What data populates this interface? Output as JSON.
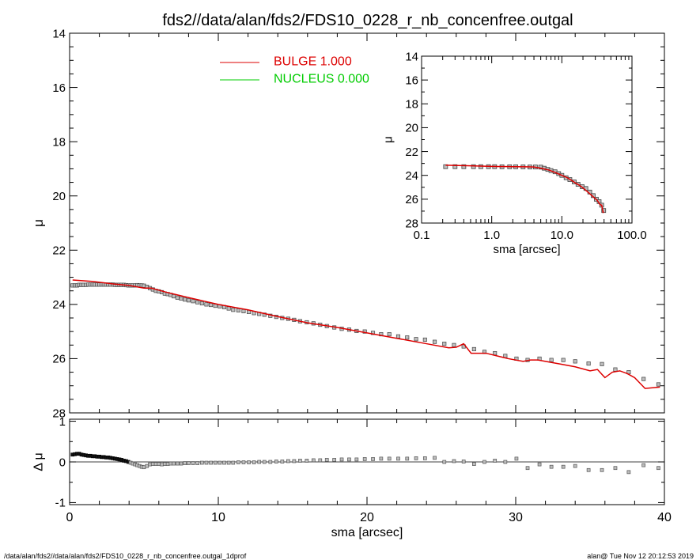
{
  "title": "fds2//data/alan/fds2/FDS10_0228_r_nb_concenfree.outgal",
  "footer_left": "/data/alan/fds2//data/alan/fds2/FDS10_0228_r_nb_concenfree.outgal_1dprof",
  "footer_right": "alan@  Tue Nov 12 20:12:53 2019",
  "colors": {
    "bulge": "#dd0000",
    "nucleus": "#00cc00",
    "data": "#555555"
  },
  "chart_data": [
    {
      "id": "main",
      "type": "scatter",
      "ylabel": "μ",
      "xlim": [
        0,
        40
      ],
      "ylim": [
        28,
        14
      ],
      "yticks": [
        14,
        16,
        18,
        20,
        22,
        24,
        26,
        28
      ],
      "legend": [
        {
          "label": "BULGE  1.000",
          "color": "#dd0000"
        },
        {
          "label": "NUCLEUS  0.000",
          "color": "#00cc00"
        }
      ],
      "legend_position": "top-left",
      "series": [
        {
          "kind": "points",
          "x": [
            0.2,
            0.35,
            0.5,
            0.65,
            0.8,
            0.95,
            1.1,
            1.25,
            1.4,
            1.55,
            1.7,
            1.85,
            2.0,
            2.15,
            2.3,
            2.45,
            2.6,
            2.75,
            2.9,
            3.05,
            3.2,
            3.35,
            3.5,
            3.65,
            3.8,
            3.95,
            4.1,
            4.25,
            4.4,
            4.55,
            4.7,
            4.85,
            5.0,
            5.2,
            5.4,
            5.6,
            5.8,
            6.0,
            6.2,
            6.4,
            6.6,
            6.8,
            7.0,
            7.25,
            7.5,
            7.75,
            8.0,
            8.3,
            8.6,
            8.9,
            9.2,
            9.5,
            9.8,
            10.1,
            10.4,
            10.7,
            11.0,
            11.35,
            11.7,
            12.05,
            12.4,
            12.75,
            13.1,
            13.5,
            13.9,
            14.3,
            14.7,
            15.1,
            15.5,
            15.95,
            16.4,
            16.85,
            17.3,
            17.8,
            18.3,
            18.8,
            19.3,
            19.85,
            20.4,
            20.95,
            21.5,
            22.1,
            22.7,
            23.3,
            23.9,
            24.55,
            25.2,
            25.85,
            26.5,
            27.2,
            27.9,
            28.6,
            29.3,
            30.05,
            30.8,
            31.6,
            32.4,
            33.2,
            34.0,
            34.9,
            35.8,
            36.7,
            37.6,
            38.6,
            39.6
          ],
          "y": [
            23.3,
            23.3,
            23.3,
            23.28,
            23.28,
            23.28,
            23.28,
            23.27,
            23.27,
            23.27,
            23.27,
            23.27,
            23.27,
            23.27,
            23.27,
            23.27,
            23.27,
            23.27,
            23.27,
            23.28,
            23.28,
            23.28,
            23.28,
            23.28,
            23.29,
            23.3,
            23.3,
            23.3,
            23.3,
            23.29,
            23.3,
            23.3,
            23.31,
            23.35,
            23.4,
            23.45,
            23.5,
            23.52,
            23.55,
            23.6,
            23.62,
            23.65,
            23.7,
            23.75,
            23.78,
            23.82,
            23.85,
            23.88,
            23.92,
            23.96,
            24.0,
            24.02,
            24.05,
            24.07,
            24.1,
            24.15,
            24.2,
            24.22,
            24.25,
            24.28,
            24.32,
            24.35,
            24.38,
            24.42,
            24.46,
            24.5,
            24.53,
            24.57,
            24.62,
            24.66,
            24.7,
            24.75,
            24.8,
            24.85,
            24.9,
            24.93,
            24.98,
            25.0,
            25.05,
            25.1,
            25.1,
            25.18,
            25.22,
            25.28,
            25.3,
            25.38,
            25.45,
            25.5,
            25.55,
            25.65,
            25.75,
            25.8,
            25.9,
            26.0,
            26.05,
            26.0,
            26.05,
            26.05,
            26.1,
            26.18,
            26.2,
            26.4,
            26.5,
            26.75,
            26.95
          ]
        },
        {
          "kind": "line",
          "name": "BULGE",
          "color": "#dd0000",
          "x": [
            0.2,
            1.5,
            3.0,
            4.0,
            5.0,
            5.5,
            6.5,
            8.0,
            10.0,
            12.0,
            14.0,
            16.0,
            18.0,
            20.0,
            22.0,
            24.0,
            25.5,
            26.0,
            26.5,
            27.0,
            28.0,
            29.5,
            30.5,
            31.0,
            31.5,
            32.0,
            33.0,
            34.0,
            35.0,
            35.5,
            36.0,
            36.5,
            37.0,
            37.5,
            38.0,
            38.7,
            39.7
          ],
          "y": [
            23.1,
            23.15,
            23.25,
            23.3,
            23.4,
            23.4,
            23.55,
            23.75,
            24.0,
            24.2,
            24.45,
            24.68,
            24.85,
            25.05,
            25.25,
            25.45,
            25.6,
            25.58,
            25.45,
            25.8,
            25.8,
            26.0,
            26.1,
            26.05,
            26.05,
            26.1,
            26.2,
            26.3,
            26.45,
            26.4,
            26.7,
            26.5,
            26.45,
            26.55,
            26.7,
            27.1,
            27.05
          ]
        }
      ]
    },
    {
      "id": "inset",
      "type": "scatter",
      "xlabel": "sma [arcsec]",
      "ylabel": "μ",
      "xscale": "log",
      "xlim": [
        0.1,
        100
      ],
      "ylim": [
        28,
        14
      ],
      "xtick_labels": [
        "0.1",
        "1.0",
        "10.0",
        "100.0"
      ],
      "yticks": [
        14,
        16,
        18,
        20,
        22,
        24,
        26,
        28
      ],
      "series": [
        {
          "kind": "points",
          "x": [
            0.22,
            0.3,
            0.4,
            0.55,
            0.7,
            0.9,
            1.1,
            1.4,
            1.8,
            2.2,
            2.8,
            3.5,
            4.2,
            5.0,
            5.6,
            6.3,
            7.0,
            8.0,
            9.0,
            10.0,
            11.5,
            13.0,
            15.0,
            17.0,
            19.5,
            22.0,
            25.0,
            28.0,
            31.0,
            34.0,
            37.0,
            39.5
          ],
          "y": [
            23.27,
            23.27,
            23.27,
            23.27,
            23.27,
            23.27,
            23.27,
            23.28,
            23.28,
            23.28,
            23.29,
            23.3,
            23.3,
            23.31,
            23.4,
            23.5,
            23.6,
            23.7,
            23.85,
            24.0,
            24.2,
            24.35,
            24.55,
            24.75,
            24.95,
            25.1,
            25.4,
            25.7,
            26.0,
            26.2,
            26.5,
            26.95
          ]
        },
        {
          "kind": "line",
          "name": "BULGE",
          "color": "#dd0000",
          "x": [
            0.22,
            0.5,
            1.0,
            2.0,
            3.0,
            4.0,
            5.0,
            6.5,
            8.0,
            10.0,
            12.0,
            14.0,
            16.0,
            18.0,
            20.0,
            24.0,
            28.0,
            32.0,
            35.0,
            37.0,
            38.7,
            39.7
          ],
          "y": [
            23.15,
            23.2,
            23.25,
            23.27,
            23.28,
            23.3,
            23.4,
            23.55,
            23.75,
            24.0,
            24.2,
            24.45,
            24.68,
            24.85,
            25.05,
            25.45,
            25.8,
            26.1,
            26.45,
            26.5,
            27.1,
            27.05
          ]
        }
      ]
    },
    {
      "id": "residual",
      "type": "scatter",
      "xlabel": "sma [arcsec]",
      "ylabel": "Δ μ",
      "xlim": [
        0,
        40
      ],
      "ylim": [
        -1.05,
        1.05
      ],
      "xticks": [
        0,
        10,
        20,
        30,
        40
      ],
      "yticks": [
        1,
        0,
        -1
      ],
      "series": [
        {
          "kind": "points",
          "x": [
            0.2,
            0.35,
            0.5,
            0.65,
            0.8,
            0.95,
            1.1,
            1.25,
            1.4,
            1.55,
            1.7,
            1.85,
            2.0,
            2.15,
            2.3,
            2.45,
            2.6,
            2.75,
            2.9,
            3.05,
            3.2,
            3.35,
            3.5,
            3.65,
            3.8,
            3.95,
            4.1,
            4.25,
            4.4,
            4.55,
            4.7,
            4.85,
            5.0,
            5.2,
            5.4,
            5.6,
            5.8,
            6.0,
            6.2,
            6.4,
            6.6,
            6.8,
            7.0,
            7.25,
            7.5,
            7.75,
            8.0,
            8.3,
            8.6,
            8.9,
            9.2,
            9.5,
            9.8,
            10.1,
            10.4,
            10.7,
            11.0,
            11.35,
            11.7,
            12.05,
            12.4,
            12.75,
            13.1,
            13.5,
            13.9,
            14.3,
            14.7,
            15.1,
            15.5,
            15.95,
            16.4,
            16.85,
            17.3,
            17.8,
            18.3,
            18.8,
            19.3,
            19.85,
            20.4,
            20.95,
            21.5,
            22.1,
            22.7,
            23.3,
            23.9,
            24.55,
            25.2,
            25.85,
            26.5,
            27.2,
            27.9,
            28.6,
            29.3,
            30.05,
            30.8,
            31.6,
            32.4,
            33.2,
            34.0,
            34.9,
            35.8,
            36.7,
            37.6,
            38.6,
            39.6
          ],
          "y": [
            0.18,
            0.19,
            0.2,
            0.2,
            0.18,
            0.17,
            0.16,
            0.15,
            0.15,
            0.14,
            0.14,
            0.13,
            0.13,
            0.12,
            0.12,
            0.11,
            0.11,
            0.1,
            0.09,
            0.08,
            0.07,
            0.06,
            0.05,
            0.03,
            0.02,
            0.0,
            -0.02,
            -0.04,
            -0.06,
            -0.08,
            -0.1,
            -0.12,
            -0.13,
            -0.1,
            -0.06,
            -0.05,
            -0.05,
            -0.05,
            -0.06,
            -0.05,
            -0.05,
            -0.04,
            -0.04,
            -0.04,
            -0.04,
            -0.03,
            -0.03,
            -0.03,
            -0.03,
            -0.02,
            -0.02,
            -0.02,
            -0.02,
            -0.02,
            -0.02,
            -0.02,
            -0.02,
            -0.01,
            -0.01,
            -0.01,
            -0.01,
            0.0,
            0.0,
            0.0,
            0.01,
            0.01,
            0.02,
            0.02,
            0.03,
            0.03,
            0.04,
            0.04,
            0.05,
            0.05,
            0.06,
            0.06,
            0.06,
            0.07,
            0.07,
            0.08,
            0.08,
            0.08,
            0.08,
            0.09,
            0.09,
            0.1,
            0.0,
            0.02,
            0.01,
            -0.05,
            0.0,
            0.03,
            0.0,
            0.08,
            -0.15,
            -0.06,
            -0.12,
            -0.12,
            -0.1,
            -0.2,
            -0.2,
            -0.15,
            -0.25,
            -0.08,
            -0.15
          ]
        }
      ]
    }
  ]
}
